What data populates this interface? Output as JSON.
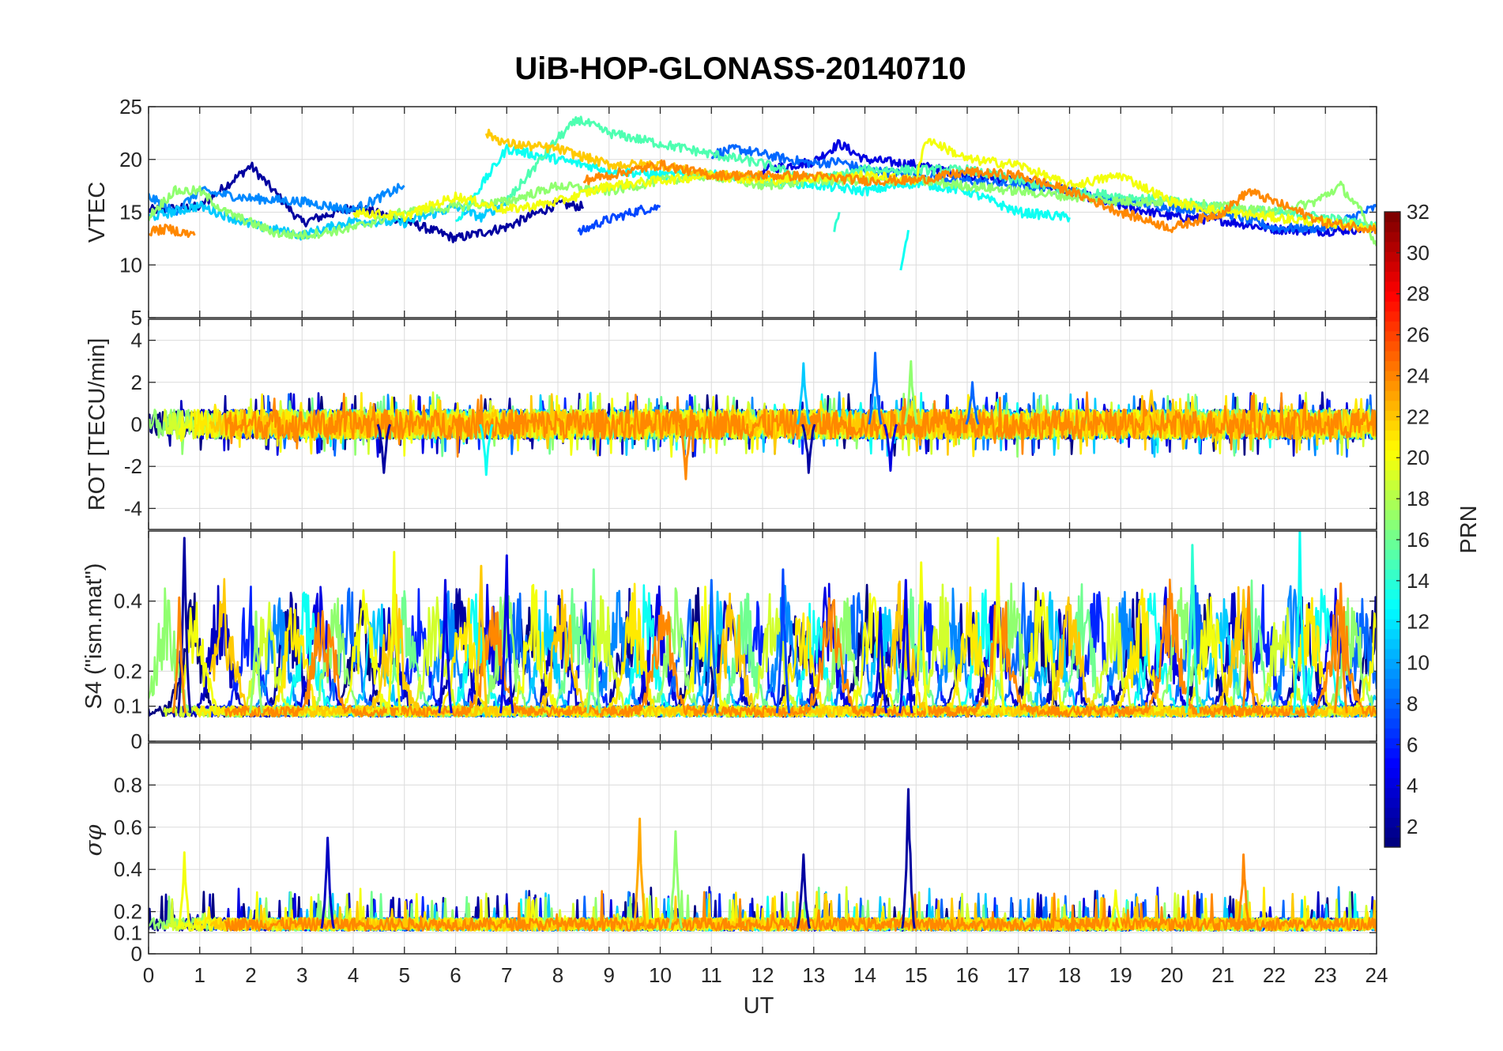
{
  "chart_data": {
    "type": "line",
    "title": "UiB-HOP-GLONASS-20140710",
    "xlabel": "UT",
    "xlim": [
      0,
      24
    ],
    "xticks": [
      "0",
      "1",
      "2",
      "3",
      "4",
      "5",
      "6",
      "7",
      "8",
      "9",
      "10",
      "11",
      "12",
      "13",
      "14",
      "15",
      "16",
      "17",
      "18",
      "19",
      "20",
      "21",
      "22",
      "23",
      "24"
    ],
    "grid": true,
    "panels": [
      {
        "id": "vtec",
        "ylabel": "VTEC",
        "ylim": [
          5,
          25
        ],
        "yticks": [
          "5",
          "10",
          "15",
          "20",
          "25"
        ],
        "series": [
          {
            "prn": 2,
            "x": [
              0,
              1,
              2,
              3,
              4,
              5,
              6,
              7,
              8,
              8.5
            ],
            "y": [
              15.2,
              15.5,
              19.4,
              14,
              15.5,
              14.2,
              12.5,
              13.6,
              15.8,
              15.5
            ]
          },
          {
            "prn": 4,
            "x": [
              12,
              13,
              13.5,
              14,
              15,
              16,
              17,
              18,
              19,
              20,
              21,
              22,
              23,
              24
            ],
            "y": [
              19,
              19.8,
              21.5,
              20,
              19.5,
              18.5,
              18,
              17,
              15.6,
              14.6,
              14.2,
              13.4,
              13.2,
              13.5
            ]
          },
          {
            "prn": 7,
            "x": [
              8.4,
              8.8,
              9.2,
              9.6,
              10
            ],
            "y": [
              13,
              14,
              14.6,
              15.2,
              15.5
            ]
          },
          {
            "prn": 8,
            "x": [
              11,
              11.5,
              12,
              12.5,
              13,
              13.5,
              14,
              15,
              16,
              17,
              18,
              19,
              20,
              21,
              22,
              23,
              24
            ],
            "y": [
              20.5,
              21,
              20.5,
              20,
              19.6,
              19.8,
              19,
              18.5,
              18,
              17.5,
              17,
              16,
              15.5,
              15,
              13.5,
              13.5,
              15.5
            ]
          },
          {
            "prn": 9,
            "x": [
              0,
              0.5,
              1,
              2,
              3,
              4,
              5
            ],
            "y": [
              16.5,
              15,
              17,
              16.3,
              16,
              15.2,
              17.5
            ]
          },
          {
            "prn": 11,
            "x": [
              0,
              1,
              2,
              3,
              4,
              5,
              6,
              6.5,
              7
            ],
            "y": [
              14.5,
              15.6,
              13.8,
              12.8,
              14.2,
              14,
              15.5,
              14.5,
              16
            ]
          },
          {
            "prn": 13,
            "x": [
              6,
              7,
              8,
              9,
              10,
              11,
              12,
              13,
              14,
              15,
              16,
              17,
              18
            ],
            "y": [
              14,
              21,
              20,
              19,
              18.5,
              18.6,
              18,
              17.6,
              17,
              17.8,
              17,
              15,
              14.5
            ]
          },
          {
            "prn": 14,
            "x": [
              13.4,
              13.5
            ],
            "y": [
              13.5,
              15
            ]
          },
          {
            "prn": 13,
            "x": [
              14.7,
              14.85
            ],
            "y": [
              9.2,
              13.3
            ]
          },
          {
            "prn": 15,
            "x": [
              7,
              8,
              8.4,
              9,
              10,
              11,
              12,
              13,
              14,
              15,
              16,
              17,
              18,
              19,
              20,
              21,
              22,
              23,
              24
            ],
            "y": [
              16,
              22,
              23.8,
              22.5,
              21.5,
              20.5,
              19.6,
              18,
              19,
              19,
              19,
              18,
              17,
              16.5,
              16,
              15.5,
              15,
              14.5,
              13.6
            ]
          },
          {
            "prn": 17,
            "x": [
              0,
              0.5,
              1,
              1.5,
              2,
              2.5,
              3,
              4,
              5,
              6,
              7,
              8,
              9,
              10,
              11,
              12,
              13,
              14,
              15,
              16,
              17,
              18,
              19,
              20,
              21,
              22,
              22.8,
              23.3,
              23.7,
              24
            ],
            "y": [
              14.6,
              17,
              17,
              15,
              14,
              13,
              12.8,
              13.5,
              15,
              15.5,
              16,
              17.5,
              17,
              18,
              18.5,
              17.5,
              18,
              18,
              18,
              17.5,
              17,
              16.5,
              16,
              16,
              15.5,
              15,
              16,
              17.5,
              15,
              11.8
            ]
          },
          {
            "prn": 20,
            "x": [
              4,
              5,
              6,
              7,
              8,
              9,
              10,
              11,
              12,
              13,
              14,
              15,
              15.2,
              16,
              17,
              18,
              19,
              20,
              21,
              22,
              23,
              24
            ],
            "y": [
              15,
              14.6,
              16.5,
              15.2,
              16,
              17.5,
              18,
              18.5,
              18,
              18.3,
              18.5,
              18,
              22,
              20,
              19.5,
              17.5,
              18.5,
              16,
              15,
              14.5,
              14,
              13.5
            ]
          },
          {
            "prn": 22,
            "x": [
              6.6,
              7,
              8,
              9,
              10,
              11,
              12
            ],
            "y": [
              22.5,
              21.5,
              21,
              19.5,
              19.5,
              18.5,
              18.4
            ]
          },
          {
            "prn": 24,
            "x": [
              0,
              0.4,
              0.9
            ],
            "y": [
              13.2,
              13.4,
              12.8
            ]
          },
          {
            "prn": 24,
            "x": [
              8.5,
              9,
              10,
              11,
              12,
              13,
              14,
              15,
              16,
              17,
              18,
              19,
              20,
              21,
              21.5,
              22,
              23,
              24
            ],
            "y": [
              18,
              18.5,
              19.5,
              18.5,
              18.5,
              18.4,
              18,
              18,
              18.8,
              18.5,
              17,
              15,
              13.5,
              15,
              17,
              16,
              14,
              13.4
            ]
          }
        ]
      },
      {
        "id": "rot",
        "ylabel": "ROT [TECU/min]",
        "ylim": [
          -5,
          5
        ],
        "yticks": [
          "-4",
          "-2",
          "0",
          "2",
          "4"
        ],
        "series_note": "rate of TEC per satellite, oscillating around 0 with spikes",
        "spikes": [
          {
            "prn": 2,
            "x": 4.6,
            "y": -2.3
          },
          {
            "prn": 24,
            "x": 10.5,
            "y": -2.6
          },
          {
            "prn": 11,
            "x": 12.8,
            "y": 2.9
          },
          {
            "prn": 2,
            "x": 12.9,
            "y": -2.3
          },
          {
            "prn": 8,
            "x": 14.2,
            "y": 3.4
          },
          {
            "prn": 4,
            "x": 14.5,
            "y": -2.2
          },
          {
            "prn": 17,
            "x": 14.9,
            "y": 3
          },
          {
            "prn": 22,
            "x": 19.6,
            "y": 1.6
          },
          {
            "prn": 13,
            "x": 6.6,
            "y": -2.4
          },
          {
            "prn": 8,
            "x": 16.1,
            "y": 2
          }
        ]
      },
      {
        "id": "s4",
        "ylabel": "S4 (\"ism.mat\")",
        "ylim": [
          0,
          0.6
        ],
        "yticks": [
          "0",
          "0.1",
          "0.2",
          "0.4"
        ],
        "bursts": [
          {
            "prn": 2,
            "x": 0.7,
            "y": 0.58
          },
          {
            "prn": 24,
            "x": 0.6,
            "y": 0.41
          },
          {
            "prn": 17,
            "x": 2.1,
            "y": 0.37
          },
          {
            "prn": 20,
            "x": 4.8,
            "y": 0.54
          },
          {
            "prn": 4,
            "x": 5.8,
            "y": 0.46
          },
          {
            "prn": 22,
            "x": 6.5,
            "y": 0.5
          },
          {
            "prn": 4,
            "x": 7,
            "y": 0.53
          },
          {
            "prn": 16,
            "x": 8.7,
            "y": 0.49
          },
          {
            "prn": 8,
            "x": 11,
            "y": 0.46
          },
          {
            "prn": 7,
            "x": 12.4,
            "y": 0.49
          },
          {
            "prn": 4,
            "x": 14.3,
            "y": 0.38
          },
          {
            "prn": 4,
            "x": 14.8,
            "y": 0.46
          },
          {
            "prn": 20,
            "x": 15.1,
            "y": 0.51
          },
          {
            "prn": 20,
            "x": 16.6,
            "y": 0.58
          },
          {
            "prn": 14,
            "x": 20.4,
            "y": 0.56
          },
          {
            "prn": 24,
            "x": 21.5,
            "y": 0.44
          },
          {
            "prn": 13,
            "x": 22.5,
            "y": 0.6
          },
          {
            "prn": 24,
            "x": 23.3,
            "y": 0.45
          }
        ]
      },
      {
        "id": "sigma",
        "ylabel": "σφ",
        "ylim": [
          0,
          1
        ],
        "yticks": [
          "0",
          "0.1",
          "0.2",
          "0.4",
          "0.6",
          "0.8"
        ],
        "spikes": [
          {
            "prn": 20,
            "x": 0.7,
            "y": 0.48
          },
          {
            "prn": 3,
            "x": 3.5,
            "y": 0.55
          },
          {
            "prn": 23,
            "x": 9.6,
            "y": 0.64
          },
          {
            "prn": 17,
            "x": 10.3,
            "y": 0.58
          },
          {
            "prn": 2,
            "x": 12.8,
            "y": 0.47
          },
          {
            "prn": 2,
            "x": 14.85,
            "y": 0.78
          },
          {
            "prn": 24,
            "x": 21.4,
            "y": 0.47
          },
          {
            "prn": 20,
            "x": 18.9,
            "y": 0.3
          }
        ]
      }
    ],
    "colorbar": {
      "label": "PRN",
      "range": [
        1,
        32
      ],
      "ticks": [
        "2",
        "4",
        "6",
        "8",
        "10",
        "12",
        "14",
        "16",
        "18",
        "20",
        "22",
        "24",
        "26",
        "28",
        "30",
        "32"
      ],
      "colormap": "jet"
    }
  }
}
